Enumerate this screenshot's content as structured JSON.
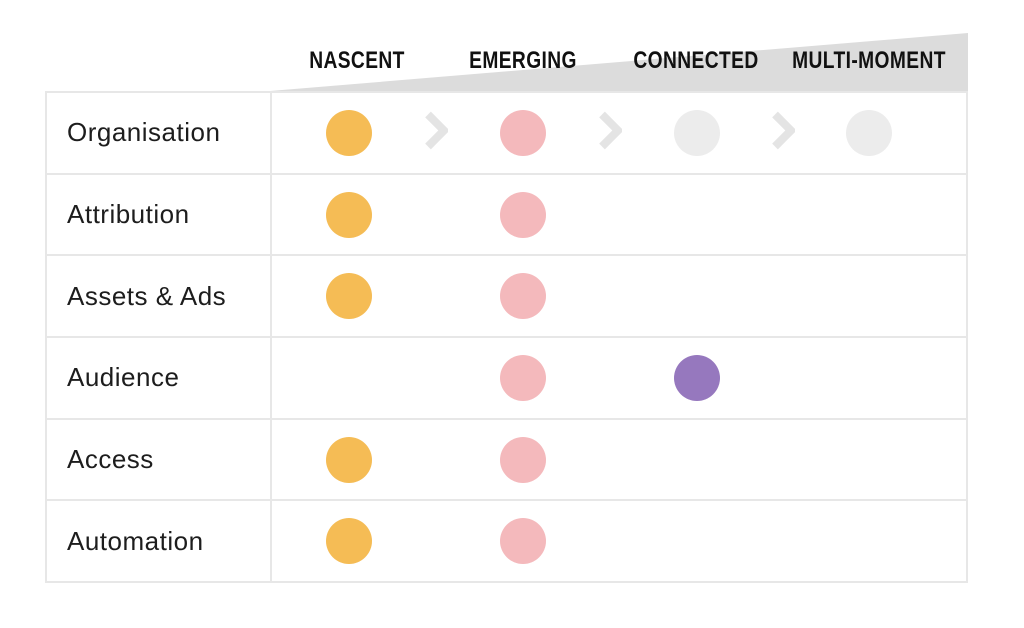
{
  "stages": [
    "NASCENT",
    "EMERGING",
    "CONNECTED",
    "MULTI-MOMENT"
  ],
  "rows": [
    {
      "label": "Organisation",
      "cells": [
        "orange",
        "pink",
        "gray",
        "gray"
      ],
      "chevrons": true
    },
    {
      "label": "Attribution",
      "cells": [
        "orange",
        "pink",
        "",
        ""
      ],
      "chevrons": false
    },
    {
      "label": "Assets & Ads",
      "cells": [
        "orange",
        "pink",
        "",
        ""
      ],
      "chevrons": false
    },
    {
      "label": "Audience",
      "cells": [
        "",
        "pink",
        "purple",
        ""
      ],
      "chevrons": false
    },
    {
      "label": "Access",
      "cells": [
        "orange",
        "pink",
        "",
        ""
      ],
      "chevrons": false
    },
    {
      "label": "Automation",
      "cells": [
        "orange",
        "pink",
        "",
        ""
      ],
      "chevrons": false
    }
  ],
  "colors": {
    "orange": "#F5BC55",
    "pink": "#F4B9BC",
    "purple": "#9678BE",
    "gray": "#ECECEC",
    "wedge": "#DCDCDC",
    "border": "#E7E7E7",
    "chevron": "#E4E4E4",
    "stage_text": "#111111",
    "row_text": "#1D1D1D"
  }
}
